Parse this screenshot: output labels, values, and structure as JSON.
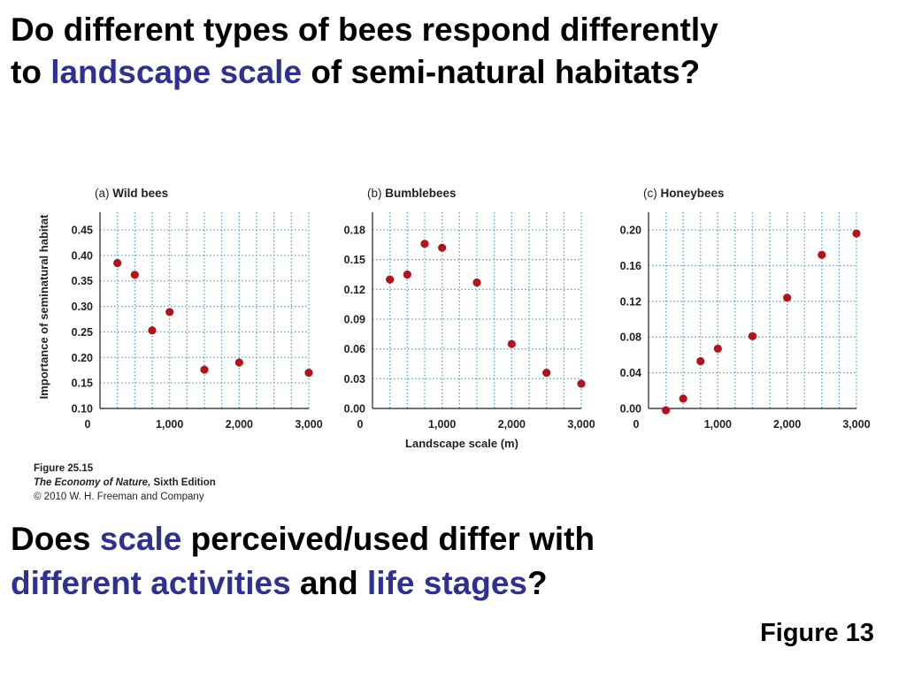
{
  "heading": {
    "line1": "Do different types of bees respond differently",
    "line2_prefix": "to ",
    "line2_highlight": "landscape scale",
    "line2_suffix": " of semi-natural habitats?"
  },
  "figure": {
    "shared_ylabel": "Importance of seminatural habitat",
    "shared_xlabel": "Landscape scale (m)",
    "caption_number": "Figure 25.15",
    "caption_book_title": "The Economy of Nature,",
    "caption_edition": " Sixth Edition",
    "caption_copyright": "© 2010 W. H. Freeman and Company"
  },
  "question": {
    "part1": "Does ",
    "part2": "scale",
    "part3": " perceived/used differ with",
    "part4": "different activities",
    "part5": " and ",
    "part6": "life stages",
    "part7": "?"
  },
  "figure_label": "Figure 13",
  "colors": {
    "highlight": "#2e3192",
    "point": "#b2141b",
    "grid": "#5aa7c4",
    "axis": "#231f20"
  },
  "chart_data": [
    {
      "type": "scatter",
      "panel_label": "(a)",
      "title": "Wild bees",
      "x": [
        250,
        500,
        750,
        1000,
        1500,
        2000,
        3000
      ],
      "y": [
        0.385,
        0.362,
        0.253,
        0.289,
        0.176,
        0.19,
        0.17
      ],
      "xticks": [
        0,
        1000,
        2000,
        3000
      ],
      "xtick_labels": [
        "0",
        "1,000",
        "2,000",
        "3,000"
      ],
      "xlim": [
        0,
        3000
      ],
      "yticks": [
        0.1,
        0.15,
        0.2,
        0.25,
        0.3,
        0.35,
        0.4,
        0.45
      ],
      "ytick_labels": [
        "0.10",
        "0.15",
        "0.20",
        "0.25",
        "0.30",
        "0.35",
        "0.40",
        "0.45"
      ],
      "ylim": [
        0.1,
        0.45
      ],
      "grid": true
    },
    {
      "type": "scatter",
      "panel_label": "(b)",
      "title": "Bumblebees",
      "x": [
        250,
        500,
        750,
        1000,
        1500,
        2000,
        2500,
        3000
      ],
      "y": [
        0.13,
        0.135,
        0.166,
        0.162,
        0.127,
        0.065,
        0.036,
        0.025
      ],
      "xticks": [
        0,
        1000,
        2000,
        3000
      ],
      "xtick_labels": [
        "0",
        "1,000",
        "2,000",
        "3,000"
      ],
      "xlim": [
        0,
        3000
      ],
      "yticks": [
        0.0,
        0.03,
        0.06,
        0.09,
        0.12,
        0.15,
        0.18
      ],
      "ytick_labels": [
        "0.00",
        "0.03",
        "0.06",
        "0.09",
        "0.12",
        "0.15",
        "0.18"
      ],
      "ylim": [
        0.0,
        0.18
      ],
      "grid": true
    },
    {
      "type": "scatter",
      "panel_label": "(c)",
      "title": "Honeybees",
      "x": [
        250,
        500,
        750,
        1000,
        1500,
        2000,
        2500,
        3000
      ],
      "y": [
        -0.002,
        0.011,
        0.053,
        0.067,
        0.081,
        0.124,
        0.172,
        0.196
      ],
      "xticks": [
        0,
        1000,
        2000,
        3000
      ],
      "xtick_labels": [
        "0",
        "1,000",
        "2,000",
        "3,000"
      ],
      "xlim": [
        0,
        3000
      ],
      "yticks": [
        0.0,
        0.04,
        0.08,
        0.12,
        0.16,
        0.2
      ],
      "ytick_labels": [
        "0.00",
        "0.04",
        "0.08",
        "0.12",
        "0.16",
        "0.20"
      ],
      "ylim": [
        0.0,
        0.2
      ],
      "grid": true
    }
  ]
}
